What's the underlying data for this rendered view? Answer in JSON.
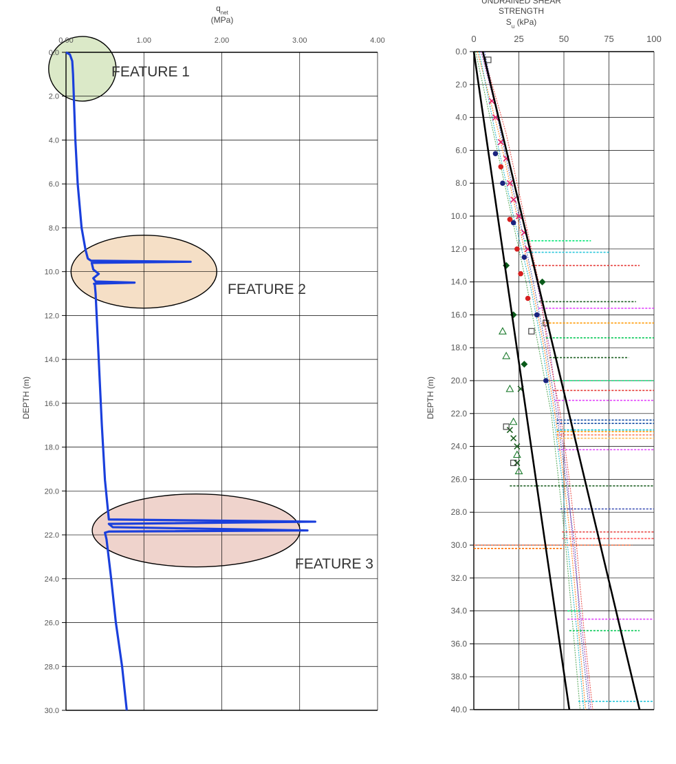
{
  "colors": {
    "profile": "#1a3fdc",
    "feature1_fill": "#dbe9c8",
    "feature2_fill": "#f5dfc6",
    "feature3_fill": "#efd3cc",
    "grid": "#000000",
    "trend_lines": "#000000"
  },
  "chart_data": [
    {
      "type": "line",
      "title": "",
      "xlabel": "q",
      "xlabel_sub": "net",
      "xunit": "(MPa)",
      "ylabel": "DEPTH (m)",
      "xlim": [
        0,
        4
      ],
      "ylim": [
        30,
        0
      ],
      "x_ticks": [
        "0.00",
        "1.00",
        "2.00",
        "3.00",
        "4.00"
      ],
      "y_ticks": [
        "0.0",
        "2.0",
        "4.0",
        "6.0",
        "8.0",
        "10.0",
        "12.0",
        "14.0",
        "16.0",
        "18.0",
        "20.0",
        "22.0",
        "24.0",
        "26.0",
        "28.0",
        "30.0"
      ],
      "grid": true,
      "series": [
        {
          "x": [
            0.0,
            0.05,
            0.08,
            0.09,
            0.1,
            0.12,
            0.15,
            0.2,
            0.25,
            0.28,
            0.3,
            0.32,
            1.6,
            0.33,
            0.35,
            0.42,
            0.35,
            0.38,
            0.88,
            0.36,
            0.37,
            0.38,
            0.42,
            0.46,
            0.5,
            0.55,
            3.2,
            0.55,
            0.6,
            3.1,
            0.55,
            0.5,
            0.52,
            0.58,
            0.64,
            0.72,
            0.78
          ],
          "y": [
            0.0,
            0.1,
            0.4,
            1.0,
            2.0,
            4.0,
            6.0,
            8.0,
            9.0,
            9.4,
            9.45,
            9.5,
            9.55,
            9.6,
            9.9,
            10.1,
            10.3,
            10.45,
            10.5,
            10.55,
            10.6,
            11.0,
            14.0,
            17.0,
            19.5,
            21.3,
            21.4,
            21.5,
            21.65,
            21.8,
            21.85,
            21.9,
            22.2,
            24.0,
            26.0,
            28.0,
            30.0
          ]
        }
      ],
      "annotations": [
        {
          "text": "FEATURE 1",
          "x": 0.1,
          "y": 0.9
        },
        {
          "text": "FEATURE 2",
          "x": 1.0,
          "y": 10.0
        },
        {
          "text": "FEATURE 3",
          "x": 1.8,
          "y": 21.8
        }
      ]
    },
    {
      "type": "scatter",
      "title": "UNDRAINED SHEAR\nSTRENGTH",
      "title_lines": [
        "UNDRAINED SHEAR",
        "STRENGTH"
      ],
      "xlabel": "S",
      "xlabel_sub": "u",
      "xunit": "(kPa)",
      "ylabel": "DEPTH (m)",
      "xlim": [
        0,
        100
      ],
      "ylim": [
        40,
        0
      ],
      "x_ticks": [
        "0",
        "25",
        "50",
        "75",
        "100"
      ],
      "y_ticks": [
        "0.0",
        "2.0",
        "4.0",
        "6.0",
        "8.0",
        "10.0",
        "12.0",
        "14.0",
        "16.0",
        "18.0",
        "20.0",
        "22.0",
        "24.0",
        "26.0",
        "28.0",
        "30.0",
        "32.0",
        "34.0",
        "36.0",
        "38.0",
        "40.0"
      ],
      "grid": true,
      "trend_lines": [
        {
          "x": [
            0,
            53
          ],
          "y": [
            0,
            40
          ]
        },
        {
          "x": [
            5,
            92
          ],
          "y": [
            0,
            40
          ]
        }
      ],
      "scatter_series": [
        {
          "color": "#e0206a",
          "marker": "x",
          "x": [
            10,
            12,
            15,
            18,
            20,
            22,
            25,
            28,
            30
          ],
          "y": [
            3.0,
            4.0,
            5.5,
            6.5,
            8.0,
            9.0,
            10.0,
            11.0,
            12.0
          ]
        },
        {
          "color": "#1a237e",
          "marker": "circle",
          "x": [
            12,
            16,
            22,
            28,
            35,
            40
          ],
          "y": [
            6.2,
            8.0,
            10.4,
            12.5,
            16.0,
            20.0
          ]
        },
        {
          "color": "#1b7a2c",
          "marker": "triangle",
          "x": [
            16,
            18,
            20,
            22,
            24,
            25
          ],
          "y": [
            17.0,
            18.5,
            20.5,
            22.5,
            24.5,
            25.5
          ]
        },
        {
          "color": "#0a5a1a",
          "marker": "diamond",
          "x": [
            18,
            22,
            28,
            38
          ],
          "y": [
            13.0,
            16.0,
            19.0,
            14.0
          ]
        },
        {
          "color": "#1b5e20",
          "marker": "x",
          "x": [
            20,
            22,
            24,
            24,
            26
          ],
          "y": [
            23.0,
            23.5,
            24.0,
            25.0,
            20.5
          ]
        },
        {
          "color": "#444444",
          "marker": "square",
          "x": [
            8,
            18,
            22,
            32,
            40
          ],
          "y": [
            0.5,
            22.8,
            25.0,
            17.0,
            16.5
          ]
        },
        {
          "color": "#d61f1f",
          "marker": "circle",
          "x": [
            15,
            20,
            24,
            26,
            30
          ],
          "y": [
            7.0,
            10.2,
            12.0,
            13.5,
            15.0
          ]
        }
      ],
      "profile_series": [
        {
          "color": "#ff6f00",
          "x": [
            2,
            14,
            24,
            32,
            39,
            45,
            50,
            54,
            58,
            62
          ],
          "y": [
            0,
            5,
            10,
            14,
            18,
            22,
            26,
            30,
            35,
            40
          ]
        },
        {
          "color": "#8e24aa",
          "x": [
            4,
            16,
            27,
            35,
            42,
            47,
            52,
            55,
            60,
            65
          ],
          "y": [
            0,
            5,
            10,
            14,
            18,
            22,
            26,
            30,
            35,
            40
          ]
        },
        {
          "color": "#00acc1",
          "x": [
            3,
            12,
            22,
            31,
            38,
            44,
            49,
            52,
            57,
            61
          ],
          "y": [
            0,
            5,
            10,
            14,
            18,
            22,
            26,
            30,
            35,
            40
          ]
        },
        {
          "color": "#e53935",
          "x": [
            5,
            18,
            28,
            36,
            41,
            48,
            53,
            57,
            61,
            66
          ],
          "y": [
            0,
            5,
            10,
            14,
            18,
            22,
            26,
            30,
            35,
            40
          ]
        },
        {
          "color": "#43a047",
          "x": [
            1,
            11,
            21,
            29,
            36,
            43,
            47,
            51,
            55,
            59
          ],
          "y": [
            0,
            5,
            10,
            14,
            18,
            22,
            26,
            30,
            35,
            40
          ]
        },
        {
          "color": "#3949ab",
          "x": [
            6,
            15,
            25,
            33,
            40,
            46,
            51,
            56,
            59,
            64
          ],
          "y": [
            0,
            5,
            10,
            14,
            18,
            22,
            26,
            30,
            35,
            40
          ]
        }
      ],
      "spikes": [
        {
          "color": "#00e676",
          "y": 11.5,
          "x1": 28,
          "x2": 65
        },
        {
          "color": "#26c6da",
          "y": 12.2,
          "x1": 30,
          "x2": 75
        },
        {
          "color": "#e53935",
          "y": 13.0,
          "x1": 32,
          "x2": 92
        },
        {
          "color": "#1b5e20",
          "y": 15.2,
          "x1": 36,
          "x2": 90
        },
        {
          "color": "#e040fb",
          "y": 15.6,
          "x1": 36,
          "x2": 100
        },
        {
          "color": "#ff9800",
          "y": 16.5,
          "x1": 38,
          "x2": 100
        },
        {
          "color": "#00c853",
          "y": 17.4,
          "x1": 40,
          "x2": 100
        },
        {
          "color": "#1b5e20",
          "y": 18.6,
          "x1": 42,
          "x2": 86
        },
        {
          "color": "#00e676",
          "y": 20.0,
          "x1": 44,
          "x2": 100
        },
        {
          "color": "#e53935",
          "y": 20.6,
          "x1": 44,
          "x2": 100
        },
        {
          "color": "#e040fb",
          "y": 21.2,
          "x1": 45,
          "x2": 100
        },
        {
          "color": "#0d47a1",
          "y": 22.4,
          "x1": 46,
          "x2": 100
        },
        {
          "color": "#0d47a1",
          "y": 22.6,
          "x1": 46,
          "x2": 100
        },
        {
          "color": "#00bcd4",
          "y": 23.0,
          "x1": 46,
          "x2": 100
        },
        {
          "color": "#ff9800",
          "y": 23.1,
          "x1": 46,
          "x2": 100
        },
        {
          "color": "#ff7043",
          "y": 23.3,
          "x1": 46,
          "x2": 100
        },
        {
          "color": "#ffb74d",
          "y": 23.5,
          "x1": 46,
          "x2": 100
        },
        {
          "color": "#e040fb",
          "y": 24.2,
          "x1": 47,
          "x2": 100
        },
        {
          "color": "#1b5e20",
          "y": 26.4,
          "x1": 20,
          "x2": 100
        },
        {
          "color": "#3f51b5",
          "y": 27.8,
          "x1": 48,
          "x2": 100
        },
        {
          "color": "#e53935",
          "y": 29.2,
          "x1": 49,
          "x2": 100
        },
        {
          "color": "#ff5252",
          "y": 29.6,
          "x1": 49,
          "x2": 100
        },
        {
          "color": "#ff7043",
          "y": 30.0,
          "x1": 0,
          "x2": 88
        },
        {
          "color": "#ff6f00",
          "y": 30.2,
          "x1": 0,
          "x2": 50
        },
        {
          "color": "#00e676",
          "y": 34.0,
          "x1": 52,
          "x2": 60
        },
        {
          "color": "#e040fb",
          "y": 34.5,
          "x1": 52,
          "x2": 100
        },
        {
          "color": "#00c853",
          "y": 35.2,
          "x1": 53,
          "x2": 92
        },
        {
          "color": "#26c6da",
          "y": 39.5,
          "x1": 58,
          "x2": 100
        }
      ]
    }
  ]
}
